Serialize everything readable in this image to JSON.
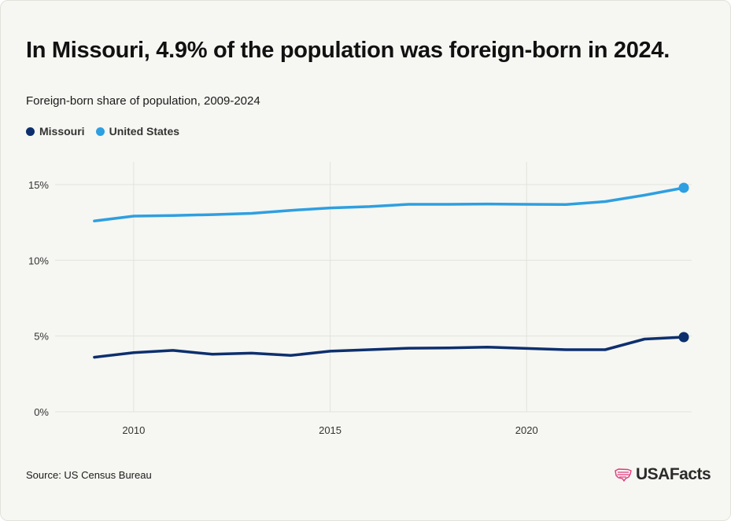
{
  "title": "In Missouri, 4.9% of the population was foreign-born in 2024.",
  "subtitle": "Foreign-born share of population, 2009-2024",
  "source": "Source: US Census Bureau",
  "logo_text": "USAFacts",
  "colors": {
    "missouri": "#0d2f6e",
    "united_states": "#2e9fe0",
    "grid": "#e3e3de",
    "tick_text": "#333333",
    "logo_accent": "#e2387c"
  },
  "chart_data": {
    "type": "line",
    "x": [
      2009,
      2010,
      2011,
      2012,
      2013,
      2014,
      2015,
      2016,
      2017,
      2018,
      2019,
      2020,
      2021,
      2022,
      2023,
      2024
    ],
    "series": [
      {
        "name": "Missouri",
        "color": "#0d2f6e",
        "values": [
          3.6,
          3.9,
          4.05,
          3.8,
          3.87,
          3.72,
          4.0,
          4.1,
          4.2,
          4.22,
          4.27,
          4.18,
          4.1,
          4.1,
          4.8,
          4.93
        ]
      },
      {
        "name": "United States",
        "color": "#2e9fe0",
        "values": [
          12.6,
          12.92,
          12.96,
          13.02,
          13.1,
          13.3,
          13.46,
          13.55,
          13.7,
          13.7,
          13.72,
          13.7,
          13.68,
          13.88,
          14.3,
          14.79
        ]
      }
    ],
    "xlim": [
      2008.0,
      2024.2
    ],
    "ylim": [
      0,
      16.5
    ],
    "x_ticks": [
      2010,
      2015,
      2020
    ],
    "x_tick_labels": [
      "2010",
      "2015",
      "2020"
    ],
    "y_ticks": [
      0,
      5,
      10,
      15
    ],
    "y_tick_labels": [
      "0%",
      "5%",
      "10%",
      "15%"
    ],
    "xlabel": "",
    "ylabel": "",
    "grid": true,
    "legend_placement": "top-left",
    "end_markers": true
  }
}
